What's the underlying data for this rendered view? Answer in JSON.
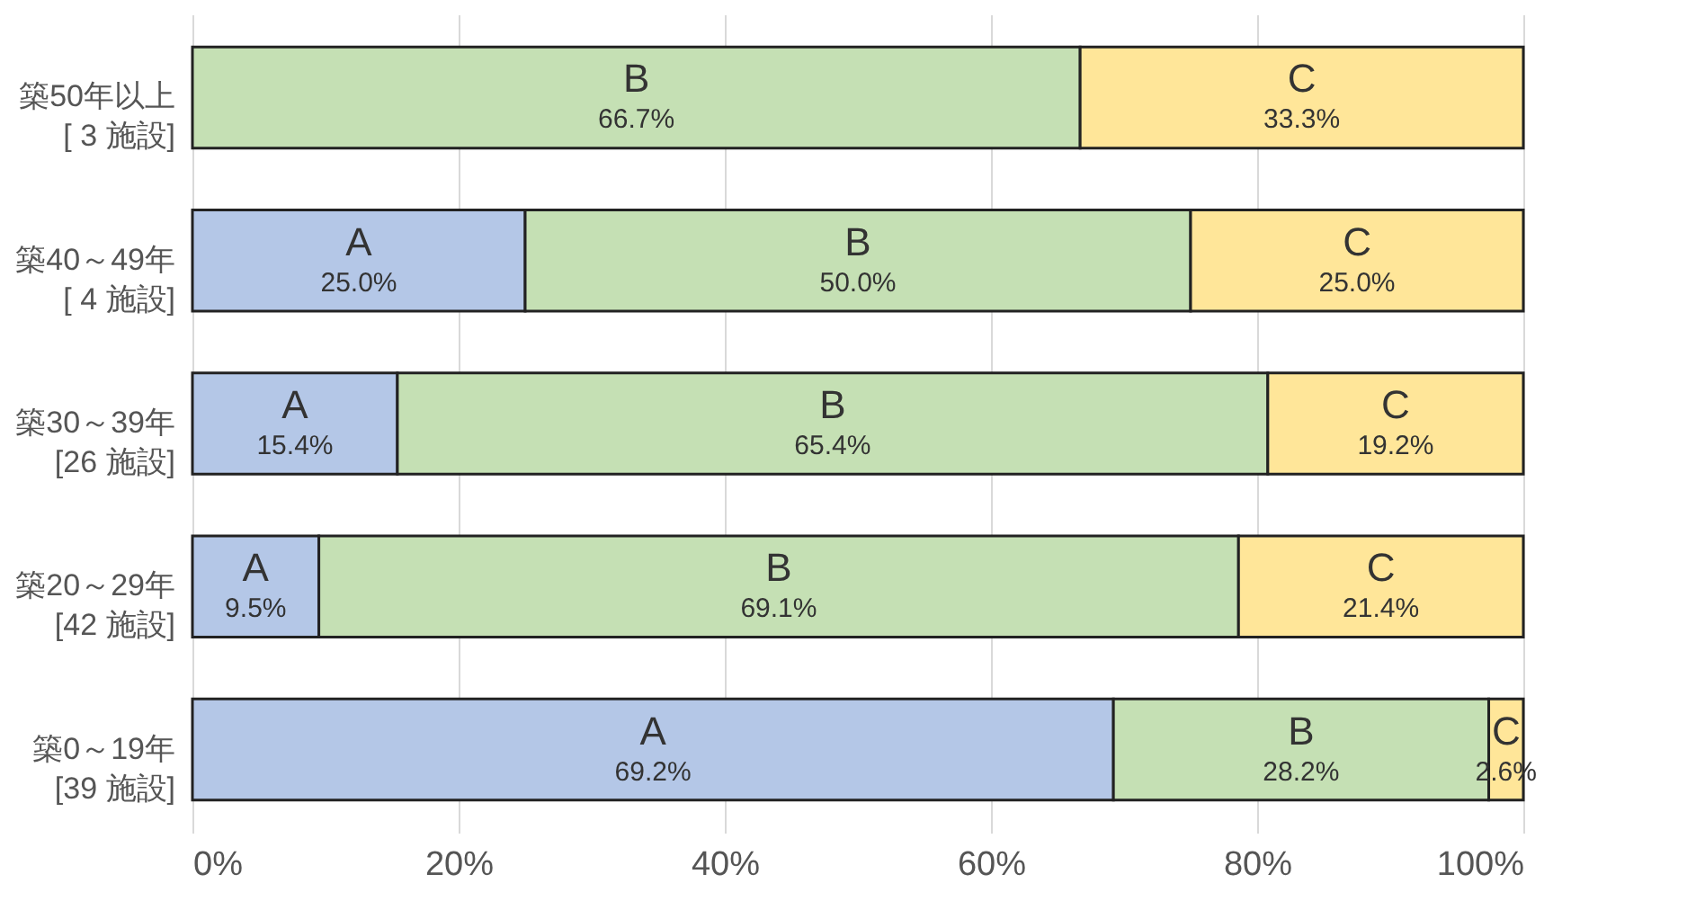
{
  "chart_data": {
    "type": "bar",
    "orientation": "horizontal",
    "stacked": true,
    "categories": [
      "築50年以上\n[ 3 施設]",
      "築40～49年\n[ 4 施設]",
      "築30～39年\n[26 施設]",
      "築20～29年\n[42 施設]",
      "築0～19年\n[39 施設]"
    ],
    "series": [
      {
        "name": "A",
        "color": "#b4c7e7",
        "values": [
          null,
          25.0,
          15.4,
          9.5,
          69.2
        ],
        "value_labels": [
          null,
          "25.0%",
          "15.4%",
          "9.5%",
          "69.2%"
        ]
      },
      {
        "name": "B",
        "color": "#c5e0b4",
        "values": [
          66.7,
          50.0,
          65.4,
          69.1,
          28.2
        ],
        "value_labels": [
          "66.7%",
          "50.0%",
          "65.4%",
          "69.1%",
          "28.2%"
        ]
      },
      {
        "name": "C",
        "color": "#ffe699",
        "values": [
          33.3,
          25.0,
          19.2,
          21.4,
          2.6
        ],
        "value_labels": [
          "33.3%",
          "25.0%",
          "19.2%",
          "21.4%",
          "2.6%"
        ]
      }
    ],
    "xlim": [
      0,
      100
    ],
    "xticks": [
      {
        "value": 0,
        "label": "0%"
      },
      {
        "value": 20,
        "label": "20%"
      },
      {
        "value": 40,
        "label": "40%"
      },
      {
        "value": 60,
        "label": "60%"
      },
      {
        "value": 80,
        "label": "80%"
      },
      {
        "value": 100,
        "label": "100%"
      }
    ],
    "grid": "x",
    "legend": false
  }
}
